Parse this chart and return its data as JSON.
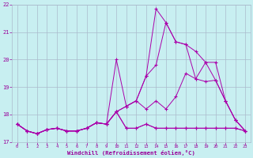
{
  "background_color": "#c8eff1",
  "grid_color": "#aabbcc",
  "line_color": "#aa00aa",
  "text_color": "#990099",
  "xlabel": "Windchill (Refroidissement éolien,°C)",
  "xlim": [
    0,
    23
  ],
  "ylim": [
    17,
    22
  ],
  "yticks": [
    17,
    18,
    19,
    20,
    21,
    22
  ],
  "xticks": [
    0,
    1,
    2,
    3,
    4,
    5,
    6,
    7,
    8,
    9,
    10,
    11,
    12,
    13,
    14,
    15,
    16,
    17,
    18,
    19,
    20,
    21,
    22,
    23
  ],
  "series": [
    [
      17.65,
      17.4,
      17.3,
      17.45,
      17.5,
      17.4,
      17.4,
      17.5,
      17.7,
      17.65,
      20.0,
      18.3,
      18.5,
      19.4,
      21.85,
      21.35,
      20.65,
      20.55,
      20.3,
      19.9,
      19.9,
      18.5,
      17.8,
      17.4
    ],
    [
      17.65,
      17.4,
      17.3,
      17.45,
      17.5,
      17.4,
      17.4,
      17.5,
      17.7,
      17.65,
      18.1,
      18.3,
      18.5,
      19.4,
      19.8,
      21.35,
      20.65,
      20.55,
      19.3,
      19.9,
      19.25,
      18.5,
      17.8,
      17.4
    ],
    [
      17.65,
      17.4,
      17.3,
      17.45,
      17.5,
      17.4,
      17.4,
      17.5,
      17.7,
      17.65,
      18.1,
      18.3,
      18.5,
      18.2,
      18.5,
      18.2,
      18.65,
      19.5,
      19.3,
      19.2,
      19.25,
      18.5,
      17.8,
      17.4
    ],
    [
      17.65,
      17.4,
      17.3,
      17.45,
      17.5,
      17.4,
      17.4,
      17.5,
      17.7,
      17.65,
      18.1,
      17.5,
      17.5,
      17.65,
      17.5,
      17.5,
      17.5,
      17.5,
      17.5,
      17.5,
      17.5,
      17.5,
      17.5,
      17.4
    ],
    [
      17.65,
      17.4,
      17.3,
      17.45,
      17.5,
      17.4,
      17.4,
      17.5,
      17.7,
      17.65,
      18.1,
      17.5,
      17.5,
      17.65,
      17.5,
      17.5,
      17.5,
      17.5,
      17.5,
      17.5,
      17.5,
      17.5,
      17.5,
      17.4
    ]
  ]
}
